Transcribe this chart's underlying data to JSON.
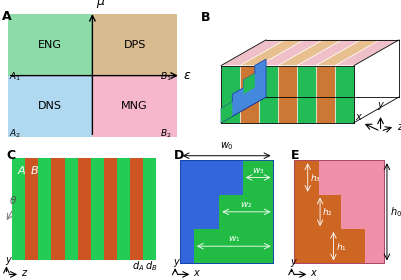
{
  "panel_A": {
    "label": "A",
    "quad_colors": {
      "ENG": "#80d8a0",
      "DPS": "#d4b483",
      "DNS": "#a8d4f0",
      "MNG": "#f5b0c8"
    },
    "xlabel": "ε",
    "ylabel": "μ"
  },
  "panel_B": {
    "label": "B",
    "green": "#22bb55",
    "orange": "#cc7733",
    "pink": "#f0a8b8",
    "blue": "#4488dd",
    "light_pink": "#f0c0c8",
    "light_orange": "#e8c090"
  },
  "panel_C": {
    "label": "C",
    "color_A": "#22cc55",
    "color_B": "#cc5522"
  },
  "panel_D": {
    "label": "D",
    "bg_color": "#3366dd",
    "stair_color": "#22bb44",
    "w0_label": "w₀",
    "step_labels": [
      "w₁",
      "w₂",
      "w₃"
    ]
  },
  "panel_E": {
    "label": "E",
    "bg_color": "#f090a8",
    "stair_color": "#cc6622",
    "h0_label": "h₀",
    "step_labels": [
      "h₁",
      "h₂",
      "h₃"
    ]
  }
}
